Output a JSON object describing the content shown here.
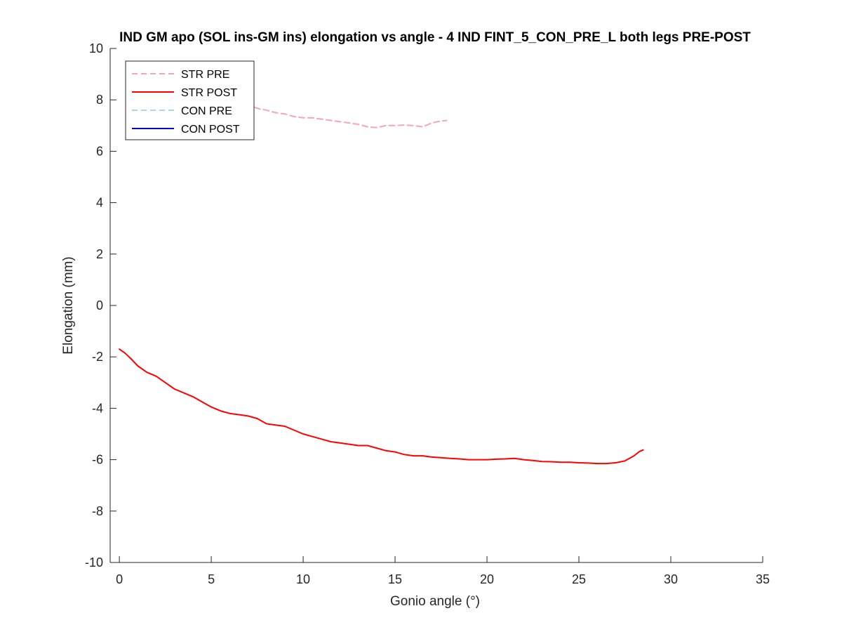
{
  "chart_data": {
    "type": "line",
    "title": "IND GM apo (SOL ins-GM ins) elongation vs angle - 4 IND FINT_5_CON_PRE_L both legs PRE-POST",
    "xlabel": "Gonio angle (°)",
    "ylabel": "Elongation (mm)",
    "xlim": [
      -0.5,
      35
    ],
    "ylim": [
      -10,
      10
    ],
    "xticks": [
      0,
      5,
      10,
      15,
      20,
      25,
      30,
      35
    ],
    "yticks": [
      -10,
      -8,
      -6,
      -4,
      -2,
      0,
      2,
      4,
      6,
      8,
      10
    ],
    "grid": false,
    "legend_position": "top-left",
    "series": [
      {
        "name": "STR PRE",
        "color": "#f7a3c0",
        "dash": "dashed",
        "x": [
          6.9,
          7.2,
          7.6,
          8.0,
          8.5,
          9.0,
          9.5,
          10.0,
          10.5,
          11.0,
          11.5,
          12.0,
          12.5,
          13.0,
          13.5,
          14.0,
          14.5,
          15.0,
          15.5,
          16.0,
          16.5,
          17.0,
          17.3,
          17.8
        ],
        "y": [
          7.85,
          7.75,
          7.65,
          7.6,
          7.5,
          7.45,
          7.35,
          7.3,
          7.3,
          7.25,
          7.2,
          7.15,
          7.1,
          7.05,
          6.95,
          6.92,
          7.0,
          7.0,
          7.02,
          7.0,
          6.95,
          7.1,
          7.15,
          7.2
        ]
      },
      {
        "name": "STR POST",
        "color": "#ff0000",
        "dash": "solid",
        "x": [
          0,
          0.3,
          0.6,
          1.0,
          1.5,
          2.0,
          2.5,
          3.0,
          3.5,
          4.0,
          4.5,
          5.0,
          5.5,
          6.0,
          6.5,
          7.0,
          7.5,
          8.0,
          8.5,
          9.0,
          9.5,
          10.0,
          10.5,
          11.0,
          11.5,
          12.0,
          12.5,
          13.0,
          13.5,
          14.0,
          14.5,
          15.0,
          15.5,
          16.0,
          16.5,
          17.0,
          17.5,
          18.0,
          18.5,
          19.0,
          19.5,
          20.0,
          20.5,
          21.0,
          21.5,
          22.0,
          22.5,
          23.0,
          23.5,
          24.0,
          24.5,
          25.0,
          25.5,
          26.0,
          26.5,
          27.0,
          27.5,
          28.0,
          28.3,
          28.5
        ],
        "y": [
          -1.7,
          -1.85,
          -2.05,
          -2.35,
          -2.6,
          -2.75,
          -3.0,
          -3.25,
          -3.4,
          -3.55,
          -3.75,
          -3.95,
          -4.1,
          -4.2,
          -4.25,
          -4.3,
          -4.4,
          -4.6,
          -4.65,
          -4.7,
          -4.85,
          -5.0,
          -5.1,
          -5.2,
          -5.3,
          -5.35,
          -5.4,
          -5.45,
          -5.45,
          -5.55,
          -5.65,
          -5.7,
          -5.8,
          -5.85,
          -5.85,
          -5.9,
          -5.92,
          -5.95,
          -5.97,
          -6.0,
          -6.0,
          -6.0,
          -5.98,
          -5.97,
          -5.95,
          -6.0,
          -6.03,
          -6.07,
          -6.08,
          -6.1,
          -6.1,
          -6.12,
          -6.13,
          -6.15,
          -6.15,
          -6.12,
          -6.05,
          -5.85,
          -5.68,
          -5.62
        ]
      },
      {
        "name": "CON PRE",
        "color": "#a8d8ea",
        "dash": "dashed",
        "x": [],
        "y": []
      },
      {
        "name": "CON POST",
        "color": "#0000cc",
        "dash": "solid",
        "x": [],
        "y": []
      }
    ]
  }
}
